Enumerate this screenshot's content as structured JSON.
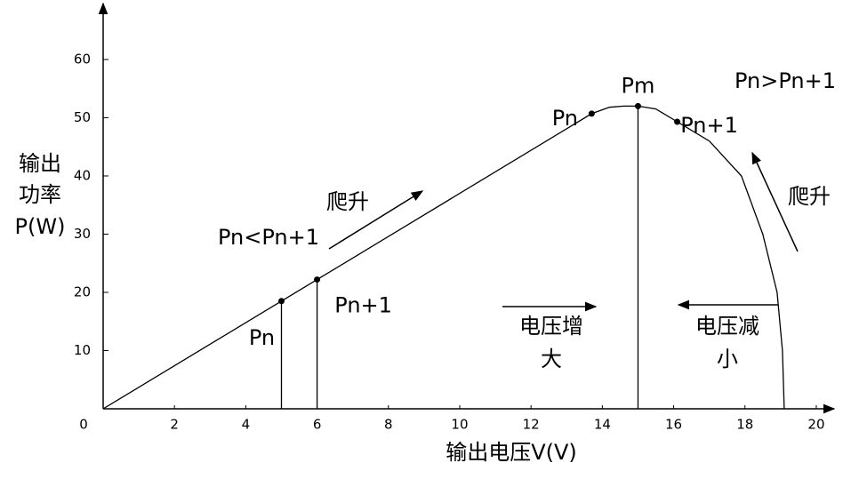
{
  "chart_data": {
    "type": "line",
    "xlabel": "输出电压V(V)",
    "ylabel": [
      "输出",
      "功率",
      "P(W)"
    ],
    "xlim": [
      0,
      20.4
    ],
    "ylim": [
      0,
      69
    ],
    "xticks": [
      0,
      2,
      4,
      6,
      8,
      10,
      12,
      14,
      16,
      18,
      20
    ],
    "yticks": [
      10,
      20,
      30,
      40,
      50,
      60
    ],
    "color": "#000000",
    "x": [
      0,
      5,
      6,
      13.7,
      14.2,
      14.6,
      15,
      15.5,
      16.1,
      17,
      17.9,
      18.5,
      18.9,
      19.05,
      19.1
    ],
    "values": [
      0,
      18.5,
      22.2,
      50.7,
      51.8,
      52,
      52,
      51.5,
      49.3,
      46,
      40,
      30,
      20,
      10,
      0
    ],
    "markers": [
      {
        "label": "Pn",
        "x": 5,
        "y": 18.5
      },
      {
        "label": "Pn+1",
        "x": 6,
        "y": 22.2
      },
      {
        "label": "Pn",
        "x": 13.7,
        "y": 50.7
      },
      {
        "label": "Pm",
        "x": 15,
        "y": 52
      },
      {
        "label": "Pn+1",
        "x": 16.1,
        "y": 49.3
      }
    ],
    "annotations": [
      "爬升",
      "Pn<Pn+1",
      "电压增",
      "大",
      "电压减",
      "小",
      "爬升",
      "Pn>Pn+1"
    ]
  }
}
